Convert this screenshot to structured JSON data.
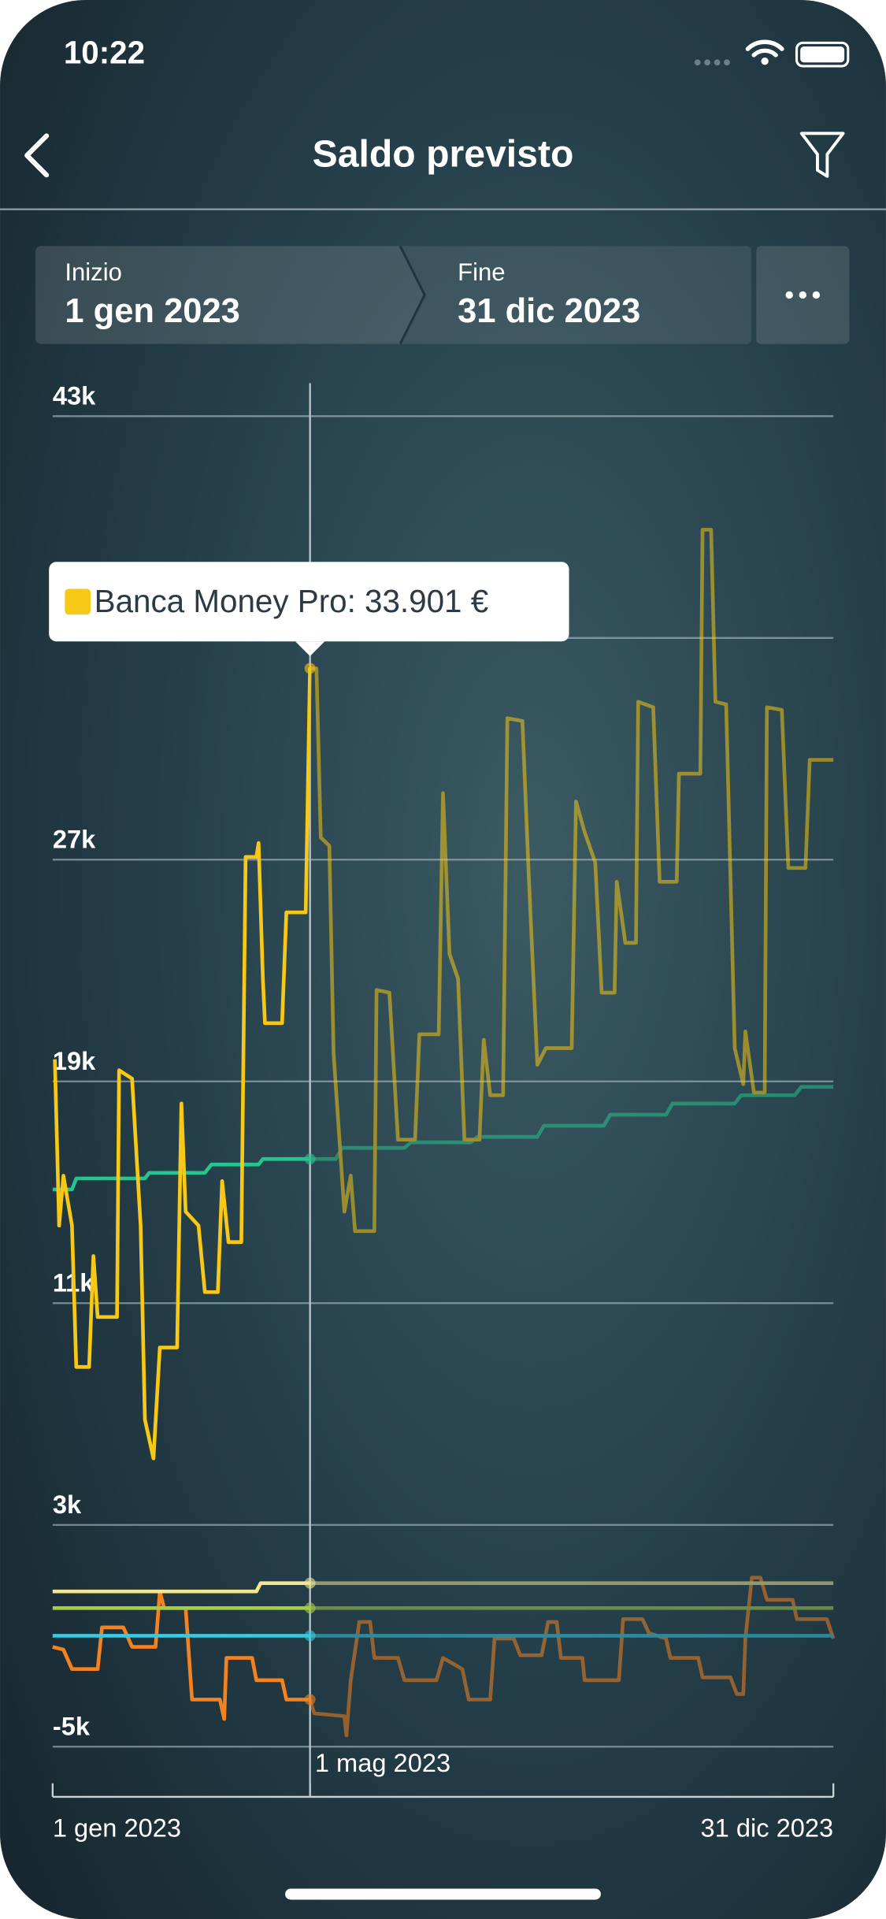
{
  "screen": {
    "status_time": "10:22",
    "title": "Saldo previsto",
    "range": {
      "start_label": "Inizio",
      "start": "1 gen 2023",
      "end_label": "Fine",
      "end": "31 dic 2023"
    }
  },
  "chart_data": {
    "type": "line",
    "tooltip": "Banca Money Pro: 33.901 €",
    "xlim": [
      0,
      364
    ],
    "xticks": [
      {
        "value": 0,
        "label": "1 gen 2023"
      },
      {
        "value": 120,
        "label": "1 mag 2023"
      },
      {
        "value": 364,
        "label": "31 dic 2023"
      }
    ],
    "ylim": [
      -5000,
      43000
    ],
    "yticks": [
      {
        "value": -5000,
        "label": "-5k"
      },
      {
        "value": 3000,
        "label": "3k"
      },
      {
        "value": 11000,
        "label": "11k"
      },
      {
        "value": 19000,
        "label": "19k"
      },
      {
        "value": 27000,
        "label": "27k"
      },
      {
        "value": 35000,
        "label": null
      },
      {
        "value": 43000,
        "label": "43k"
      }
    ],
    "grid": true,
    "series": [
      {
        "color": "#f58220",
        "x": [
          0,
          5,
          9,
          21,
          23,
          33,
          37,
          48,
          50,
          52,
          62,
          65,
          78,
          80,
          81,
          93,
          95,
          107,
          109,
          120,
          122,
          136,
          137,
          139,
          143,
          148,
          150,
          161,
          164,
          179,
          182,
          191,
          194,
          204,
          206,
          215,
          218,
          228,
          231,
          235,
          237,
          247,
          248,
          264,
          266,
          275,
          278,
          286,
          288,
          301,
          303,
          316,
          319,
          322,
          323,
          326,
          330,
          333,
          345,
          347,
          361,
          364
        ],
        "values": [
          -1400,
          -1500,
          -2200,
          -2200,
          -700,
          -700,
          -1400,
          -1400,
          600,
          0,
          0,
          -3300,
          -3300,
          -4000,
          -1800,
          -1800,
          -2600,
          -2600,
          -3300,
          -3300,
          -3800,
          -3900,
          -4600,
          -2600,
          -500,
          -500,
          -1800,
          -1800,
          -2600,
          -2600,
          -1800,
          -2200,
          -3300,
          -3300,
          -1100,
          -1100,
          -1700,
          -1700,
          -500,
          -500,
          -1800,
          -1800,
          -2600,
          -2600,
          -400,
          -400,
          -900,
          -1100,
          -1800,
          -1800,
          -2500,
          -2500,
          -3100,
          -3100,
          -1100,
          1100,
          1100,
          300,
          300,
          -400,
          -400,
          -1100
        ]
      },
      {
        "color": "#3cc8e0",
        "x": [
          0,
          364
        ],
        "values": [
          -1000,
          -1000
        ]
      },
      {
        "color": "#a6cf3f",
        "x": [
          0,
          364
        ],
        "values": [
          0,
          0
        ]
      },
      {
        "color": "#f3e58e",
        "x": [
          0,
          95,
          97,
          364
        ],
        "values": [
          600,
          600,
          900,
          900
        ]
      },
      {
        "color": "#26c48f",
        "x": [
          0,
          9,
          11,
          43,
          45,
          71,
          74,
          96,
          98,
          132,
          135,
          164,
          167,
          195,
          198,
          226,
          229,
          257,
          260,
          286,
          289,
          318,
          321,
          346,
          349,
          364
        ],
        "values": [
          15100,
          15100,
          15500,
          15500,
          15700,
          15700,
          16000,
          16000,
          16200,
          16200,
          16600,
          16600,
          16800,
          16800,
          17000,
          17000,
          17400,
          17400,
          17800,
          17800,
          18200,
          18200,
          18500,
          18500,
          18800,
          18800
        ]
      },
      {
        "color": "#f7c815",
        "x": [
          1,
          3,
          5,
          9,
          11,
          17,
          19,
          21,
          30,
          31,
          37,
          41,
          43,
          47,
          50,
          58,
          60,
          62,
          68,
          71,
          77,
          79,
          82,
          88,
          90,
          95,
          96,
          98,
          99,
          107,
          109,
          118,
          120,
          123,
          125,
          129,
          131,
          136,
          139,
          141,
          150,
          151,
          157,
          161,
          169,
          171,
          180,
          182,
          185,
          189,
          192,
          199,
          201,
          204,
          210,
          212,
          219,
          222,
          226,
          230,
          242,
          244,
          248,
          253,
          256,
          262,
          263,
          267,
          272,
          273,
          280,
          283,
          291,
          292,
          302,
          303,
          307,
          309,
          314,
          318,
          322,
          323,
          327,
          332,
          333,
          340,
          343,
          351,
          353,
          364
        ],
        "values": [
          19800,
          13800,
          15600,
          13800,
          8700,
          8700,
          12700,
          10500,
          10500,
          19400,
          19100,
          13800,
          6800,
          5400,
          9400,
          9400,
          18200,
          14300,
          13800,
          11400,
          11400,
          15400,
          13200,
          13200,
          27100,
          27100,
          27600,
          22700,
          21100,
          21100,
          25100,
          25100,
          33901,
          33900,
          27800,
          27500,
          20000,
          14300,
          15600,
          13600,
          13600,
          22300,
          22200,
          16900,
          16900,
          20700,
          20700,
          29400,
          23600,
          22700,
          16900,
          16900,
          20500,
          18500,
          18500,
          32100,
          32000,
          26400,
          19600,
          20200,
          20200,
          29100,
          28000,
          26900,
          22200,
          22200,
          26200,
          24000,
          24000,
          32700,
          32500,
          26200,
          26200,
          30100,
          30100,
          38900,
          38900,
          32700,
          32600,
          20200,
          18900,
          20800,
          18600,
          18600,
          32500,
          32400,
          26700,
          26700,
          30600,
          30600
        ]
      }
    ]
  }
}
